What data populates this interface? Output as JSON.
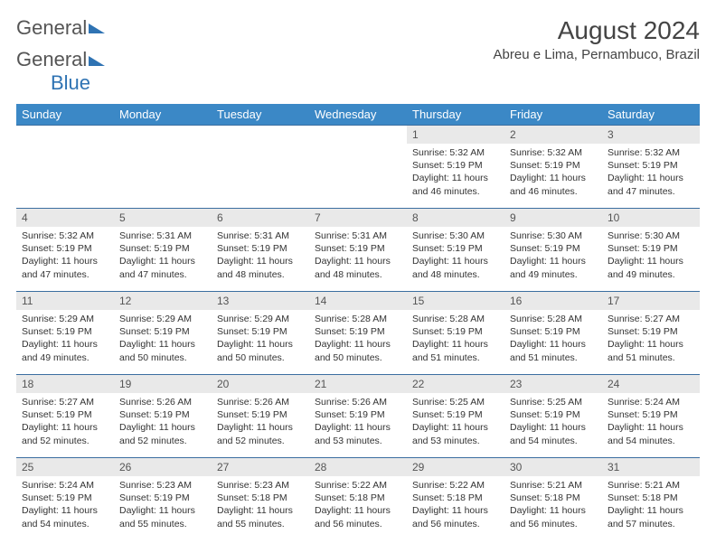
{
  "brand": {
    "part1": "General",
    "part2": "Blue"
  },
  "title": "August 2024",
  "location": "Abreu e Lima, Pernambuco, Brazil",
  "colors": {
    "header_bg": "#3b88c6",
    "header_text": "#ffffff",
    "row_border": "#3b6ea0",
    "daynum_bg": "#e9e9e9",
    "brand_blue": "#2f73b3"
  },
  "weekdays": [
    "Sunday",
    "Monday",
    "Tuesday",
    "Wednesday",
    "Thursday",
    "Friday",
    "Saturday"
  ],
  "weeks": [
    [
      {
        "n": "",
        "sr": "",
        "ss": "",
        "dl": ""
      },
      {
        "n": "",
        "sr": "",
        "ss": "",
        "dl": ""
      },
      {
        "n": "",
        "sr": "",
        "ss": "",
        "dl": ""
      },
      {
        "n": "",
        "sr": "",
        "ss": "",
        "dl": ""
      },
      {
        "n": "1",
        "sr": "5:32 AM",
        "ss": "5:19 PM",
        "dl": "11 hours and 46 minutes."
      },
      {
        "n": "2",
        "sr": "5:32 AM",
        "ss": "5:19 PM",
        "dl": "11 hours and 46 minutes."
      },
      {
        "n": "3",
        "sr": "5:32 AM",
        "ss": "5:19 PM",
        "dl": "11 hours and 47 minutes."
      }
    ],
    [
      {
        "n": "4",
        "sr": "5:32 AM",
        "ss": "5:19 PM",
        "dl": "11 hours and 47 minutes."
      },
      {
        "n": "5",
        "sr": "5:31 AM",
        "ss": "5:19 PM",
        "dl": "11 hours and 47 minutes."
      },
      {
        "n": "6",
        "sr": "5:31 AM",
        "ss": "5:19 PM",
        "dl": "11 hours and 48 minutes."
      },
      {
        "n": "7",
        "sr": "5:31 AM",
        "ss": "5:19 PM",
        "dl": "11 hours and 48 minutes."
      },
      {
        "n": "8",
        "sr": "5:30 AM",
        "ss": "5:19 PM",
        "dl": "11 hours and 48 minutes."
      },
      {
        "n": "9",
        "sr": "5:30 AM",
        "ss": "5:19 PM",
        "dl": "11 hours and 49 minutes."
      },
      {
        "n": "10",
        "sr": "5:30 AM",
        "ss": "5:19 PM",
        "dl": "11 hours and 49 minutes."
      }
    ],
    [
      {
        "n": "11",
        "sr": "5:29 AM",
        "ss": "5:19 PM",
        "dl": "11 hours and 49 minutes."
      },
      {
        "n": "12",
        "sr": "5:29 AM",
        "ss": "5:19 PM",
        "dl": "11 hours and 50 minutes."
      },
      {
        "n": "13",
        "sr": "5:29 AM",
        "ss": "5:19 PM",
        "dl": "11 hours and 50 minutes."
      },
      {
        "n": "14",
        "sr": "5:28 AM",
        "ss": "5:19 PM",
        "dl": "11 hours and 50 minutes."
      },
      {
        "n": "15",
        "sr": "5:28 AM",
        "ss": "5:19 PM",
        "dl": "11 hours and 51 minutes."
      },
      {
        "n": "16",
        "sr": "5:28 AM",
        "ss": "5:19 PM",
        "dl": "11 hours and 51 minutes."
      },
      {
        "n": "17",
        "sr": "5:27 AM",
        "ss": "5:19 PM",
        "dl": "11 hours and 51 minutes."
      }
    ],
    [
      {
        "n": "18",
        "sr": "5:27 AM",
        "ss": "5:19 PM",
        "dl": "11 hours and 52 minutes."
      },
      {
        "n": "19",
        "sr": "5:26 AM",
        "ss": "5:19 PM",
        "dl": "11 hours and 52 minutes."
      },
      {
        "n": "20",
        "sr": "5:26 AM",
        "ss": "5:19 PM",
        "dl": "11 hours and 52 minutes."
      },
      {
        "n": "21",
        "sr": "5:26 AM",
        "ss": "5:19 PM",
        "dl": "11 hours and 53 minutes."
      },
      {
        "n": "22",
        "sr": "5:25 AM",
        "ss": "5:19 PM",
        "dl": "11 hours and 53 minutes."
      },
      {
        "n": "23",
        "sr": "5:25 AM",
        "ss": "5:19 PM",
        "dl": "11 hours and 54 minutes."
      },
      {
        "n": "24",
        "sr": "5:24 AM",
        "ss": "5:19 PM",
        "dl": "11 hours and 54 minutes."
      }
    ],
    [
      {
        "n": "25",
        "sr": "5:24 AM",
        "ss": "5:19 PM",
        "dl": "11 hours and 54 minutes."
      },
      {
        "n": "26",
        "sr": "5:23 AM",
        "ss": "5:19 PM",
        "dl": "11 hours and 55 minutes."
      },
      {
        "n": "27",
        "sr": "5:23 AM",
        "ss": "5:18 PM",
        "dl": "11 hours and 55 minutes."
      },
      {
        "n": "28",
        "sr": "5:22 AM",
        "ss": "5:18 PM",
        "dl": "11 hours and 56 minutes."
      },
      {
        "n": "29",
        "sr": "5:22 AM",
        "ss": "5:18 PM",
        "dl": "11 hours and 56 minutes."
      },
      {
        "n": "30",
        "sr": "5:21 AM",
        "ss": "5:18 PM",
        "dl": "11 hours and 56 minutes."
      },
      {
        "n": "31",
        "sr": "5:21 AM",
        "ss": "5:18 PM",
        "dl": "11 hours and 57 minutes."
      }
    ]
  ],
  "labels": {
    "sunrise": "Sunrise: ",
    "sunset": "Sunset: ",
    "daylight": "Daylight: "
  }
}
